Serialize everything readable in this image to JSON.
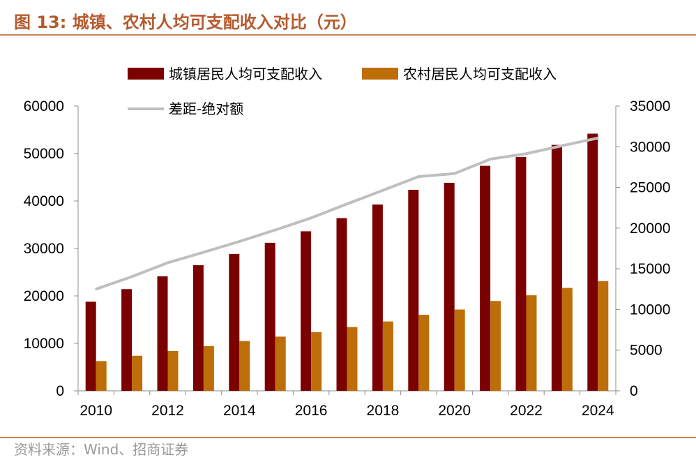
{
  "figure": {
    "title": "图 13:  城镇、农村人均可支配收入对比（元）",
    "source": "资料来源：Wind、招商证券"
  },
  "colors": {
    "urban": "#7b0000",
    "rural": "#bd6e08",
    "gap": "#bfbfbf",
    "title": "#b55a2e",
    "rule": "#c98358",
    "axis": "#8c8c8c"
  },
  "chart_data": {
    "type": "bar",
    "title": "城镇、农村人均可支配收入对比（元）",
    "categories": [
      "2010",
      "2011",
      "2012",
      "2013",
      "2014",
      "2015",
      "2016",
      "2017",
      "2018",
      "2019",
      "2020",
      "2021",
      "2022",
      "2023",
      "2024"
    ],
    "x_tick_labels": [
      "2010",
      "2012",
      "2014",
      "2016",
      "2018",
      "2020",
      "2022",
      "2024"
    ],
    "series": [
      {
        "name": "城镇居民人均可支配收入",
        "type": "bar",
        "axis": "left",
        "values": [
          18779,
          21427,
          24127,
          26467,
          28844,
          31195,
          33616,
          36396,
          39251,
          42359,
          43834,
          47412,
          49283,
          51821,
          54188
        ]
      },
      {
        "name": "农村居民人均可支配收入",
        "type": "bar",
        "axis": "left",
        "values": [
          6272,
          7394,
          8389,
          9430,
          10489,
          11422,
          12363,
          13432,
          14617,
          16021,
          17131,
          18931,
          20133,
          21691,
          23119
        ]
      },
      {
        "name": "差距-绝对额",
        "type": "line",
        "axis": "right",
        "values": [
          12507,
          14033,
          15738,
          17037,
          18355,
          19773,
          21253,
          22964,
          24634,
          26338,
          26703,
          28481,
          29150,
          30130,
          31069
        ]
      }
    ],
    "y_left": {
      "min": 0,
      "max": 60000,
      "ticks": [
        0,
        10000,
        20000,
        30000,
        40000,
        50000,
        60000
      ]
    },
    "y_right": {
      "min": 0,
      "max": 35000,
      "ticks": [
        0,
        5000,
        10000,
        15000,
        20000,
        25000,
        30000,
        35000
      ]
    },
    "legend_position": "top",
    "grid": false
  }
}
